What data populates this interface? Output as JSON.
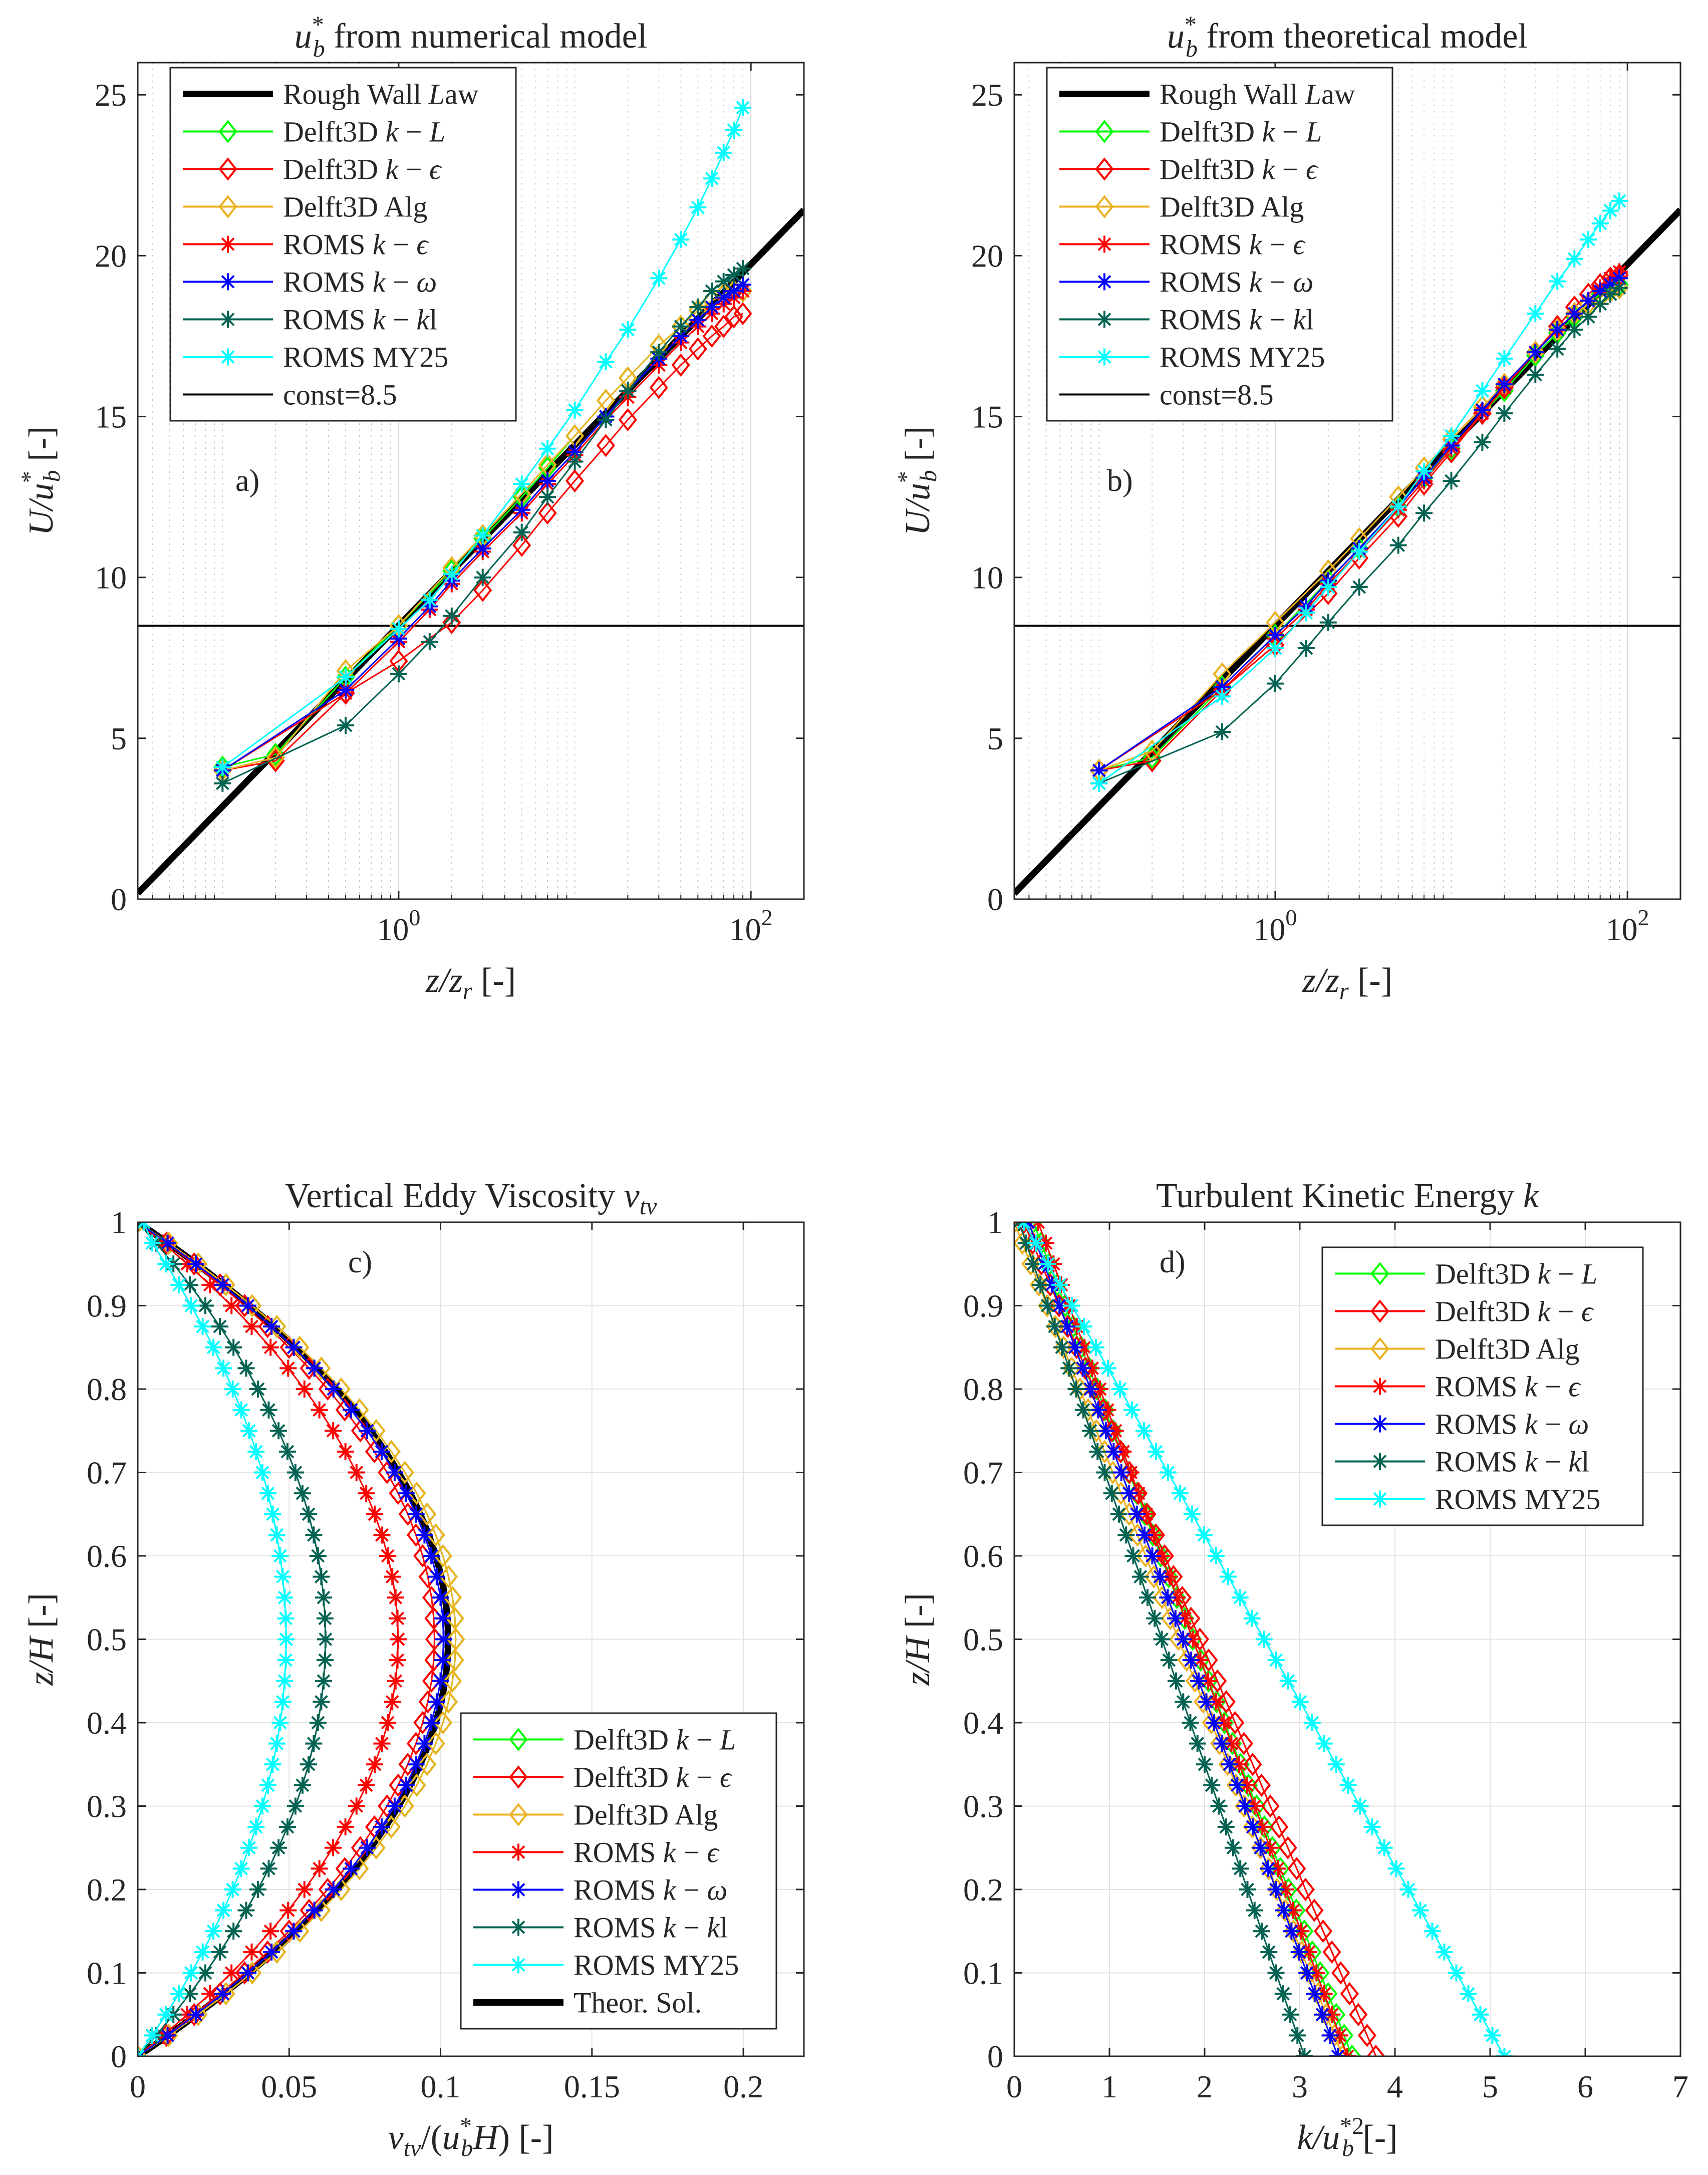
{
  "styles": {
    "Rough Wall Law": {
      "color": "#000000",
      "marker": "none",
      "width": 13
    },
    "Delft3D k-L": {
      "color": "#00ff00",
      "marker": "diamond",
      "width": 3
    },
    "Delft3D k-eps": {
      "color": "#ff0000",
      "marker": "diamond",
      "width": 3
    },
    "Delft3D Alg": {
      "color": "#edb120",
      "marker": "diamond",
      "width": 3
    },
    "ROMS k-eps": {
      "color": "#ff0000",
      "marker": "star",
      "width": 3
    },
    "ROMS k-omega": {
      "color": "#0000ff",
      "marker": "star",
      "width": 3
    },
    "ROMS k-kl": {
      "color": "#036251",
      "marker": "star",
      "width": 3
    },
    "ROMS MY25": {
      "color": "#00ffff",
      "marker": "star",
      "width": 3
    },
    "const=8.5": {
      "color": "#000000",
      "marker": "none",
      "width": 4
    },
    "Theor. Sol.": {
      "color": "#000000",
      "marker": "none",
      "width": 13
    }
  },
  "chart_data": [
    {
      "id": "a",
      "type": "line",
      "panel_letter": "a)",
      "title": "u_b^* from numerical model",
      "title_parts": {
        "prefix": "u",
        "sub": "b",
        "sup": "*",
        "suffix": " from numerical model"
      },
      "xlabel": "z/z_r [-]",
      "ylabel": "U/u_b^* [-]",
      "xscale": "log",
      "xlim": [
        0.033,
        200
      ],
      "ylim": [
        0,
        26
      ],
      "xticks": [
        {
          "value": 1,
          "label": "10",
          "exp": "0"
        },
        {
          "value": 100,
          "label": "10",
          "exp": "2"
        }
      ],
      "yticks": [
        0,
        5,
        10,
        15,
        20,
        25
      ],
      "grid": "minor",
      "legend_position": "top-left",
      "legend": [
        "Rough Wall Law",
        "Delft3D k-L",
        "Delft3D k-eps",
        "Delft3D Alg",
        "ROMS k-eps",
        "ROMS k-omega",
        "ROMS k-kl",
        "ROMS MY25",
        "const=8.5"
      ],
      "legend_labels": [
        "Rough Wall Law",
        "Delft3D k − L",
        "Delft3D k − ϵ",
        "Delft3D Alg",
        "ROMS k − ϵ",
        "ROMS k − ω",
        "ROMS k − kl",
        "ROMS MY25",
        "const=8.5"
      ],
      "series": [
        {
          "name": "Rough Wall Law",
          "kind": "loglaw",
          "x_range": [
            0.033,
            200
          ]
        },
        {
          "name": "const=8.5",
          "kind": "hline",
          "y": 8.5
        },
        {
          "name": "Delft3D k-L",
          "x": [
            0.1,
            0.2,
            0.5,
            1,
            2,
            3,
            5,
            7,
            10,
            15,
            20,
            30,
            40,
            50,
            60,
            70,
            80,
            90
          ],
          "y": [
            4.1,
            4.5,
            6.9,
            8.5,
            10.2,
            11.2,
            12.5,
            13.4,
            14.4,
            15.5,
            16.2,
            17.2,
            17.8,
            18.3,
            18.6,
            18.8,
            18.9,
            18.9
          ]
        },
        {
          "name": "Delft3D k-eps",
          "x": [
            0.1,
            0.2,
            0.5,
            1,
            2,
            3,
            5,
            7,
            10,
            15,
            20,
            30,
            40,
            50,
            60,
            70,
            80,
            90
          ],
          "y": [
            4.0,
            4.3,
            6.4,
            7.4,
            8.6,
            9.6,
            11.0,
            12.0,
            13.0,
            14.1,
            14.9,
            15.9,
            16.6,
            17.1,
            17.5,
            17.8,
            18.1,
            18.2
          ]
        },
        {
          "name": "Delft3D Alg",
          "x": [
            0.1,
            0.2,
            0.5,
            1,
            2,
            3,
            5,
            7,
            10,
            15,
            20,
            30,
            40,
            50,
            60,
            70,
            80,
            90
          ],
          "y": [
            4.0,
            4.4,
            7.1,
            8.5,
            10.3,
            11.3,
            12.6,
            13.5,
            14.4,
            15.5,
            16.2,
            17.2,
            17.8,
            18.3,
            18.6,
            18.8,
            18.9,
            18.9
          ]
        },
        {
          "name": "ROMS k-eps",
          "x": [
            0.1,
            0.5,
            1,
            1.5,
            2,
            3,
            5,
            7,
            10,
            15,
            20,
            30,
            40,
            50,
            60,
            70,
            80,
            90
          ],
          "y": [
            4.0,
            6.4,
            8.0,
            9.0,
            9.8,
            10.8,
            12.0,
            12.9,
            13.8,
            14.9,
            15.6,
            16.6,
            17.3,
            17.8,
            18.2,
            18.5,
            18.7,
            18.9
          ]
        },
        {
          "name": "ROMS k-omega",
          "x": [
            0.1,
            0.5,
            1,
            1.5,
            2,
            3,
            5,
            7,
            10,
            15,
            20,
            30,
            40,
            50,
            60,
            70,
            80,
            90
          ],
          "y": [
            4.0,
            6.5,
            8.1,
            9.1,
            9.9,
            10.9,
            12.1,
            13.0,
            13.9,
            15.0,
            15.8,
            16.8,
            17.5,
            18.0,
            18.4,
            18.7,
            18.9,
            19.1
          ]
        },
        {
          "name": "ROMS k-kl",
          "x": [
            0.1,
            0.5,
            1,
            1.5,
            2,
            3,
            5,
            7,
            10,
            15,
            20,
            30,
            40,
            50,
            60,
            70,
            80,
            90
          ],
          "y": [
            3.6,
            5.4,
            7.0,
            8.0,
            8.8,
            10.0,
            11.4,
            12.5,
            13.6,
            14.9,
            15.8,
            17.0,
            17.8,
            18.4,
            18.9,
            19.2,
            19.4,
            19.6
          ]
        },
        {
          "name": "ROMS MY25",
          "x": [
            0.1,
            0.5,
            1,
            1.5,
            2,
            3,
            5,
            7,
            10,
            15,
            20,
            30,
            40,
            50,
            60,
            70,
            80,
            90
          ],
          "y": [
            4.1,
            6.9,
            8.4,
            9.3,
            10.1,
            11.3,
            12.9,
            14.0,
            15.2,
            16.7,
            17.7,
            19.3,
            20.5,
            21.5,
            22.4,
            23.2,
            23.9,
            24.6
          ]
        }
      ]
    },
    {
      "id": "b",
      "type": "line",
      "panel_letter": "b)",
      "title": "u_b^* from theoretical model",
      "title_parts": {
        "prefix": "u",
        "sub": "b",
        "sup": "*",
        "suffix": " from theoretical model"
      },
      "xlabel": "z/z_r [-]",
      "ylabel": "U/u_b^* [-]",
      "xscale": "log",
      "xlim": [
        0.033,
        200
      ],
      "ylim": [
        0,
        26
      ],
      "xticks": [
        {
          "value": 1,
          "label": "10",
          "exp": "0"
        },
        {
          "value": 100,
          "label": "10",
          "exp": "2"
        }
      ],
      "yticks": [
        0,
        5,
        10,
        15,
        20,
        25
      ],
      "grid": "minor",
      "legend_position": "top-left",
      "legend": [
        "Rough Wall Law",
        "Delft3D k-L",
        "Delft3D k-eps",
        "Delft3D Alg",
        "ROMS k-eps",
        "ROMS k-omega",
        "ROMS k-kl",
        "ROMS MY25",
        "const=8.5"
      ],
      "legend_labels": [
        "Rough Wall Law",
        "Delft3D k − L",
        "Delft3D k − ϵ",
        "Delft3D Alg",
        "ROMS k − ϵ",
        "ROMS k − ω",
        "ROMS k − kl",
        "ROMS MY25",
        "const=8.5"
      ],
      "series": [
        {
          "name": "Rough Wall Law",
          "kind": "loglaw",
          "x_range": [
            0.033,
            200
          ]
        },
        {
          "name": "const=8.5",
          "kind": "hline",
          "y": 8.5
        },
        {
          "name": "Delft3D k-L",
          "x": [
            0.1,
            0.2,
            0.5,
            1,
            2,
            3,
            5,
            7,
            10,
            15,
            20,
            30,
            40,
            50,
            60,
            70,
            80,
            90
          ],
          "y": [
            4.0,
            4.4,
            6.6,
            8.2,
            9.9,
            10.9,
            12.2,
            13.1,
            14.0,
            15.1,
            15.8,
            16.9,
            17.6,
            18.1,
            18.5,
            18.8,
            19.0,
            19.1
          ]
        },
        {
          "name": "Delft3D k-eps",
          "x": [
            0.1,
            0.2,
            0.5,
            1,
            2,
            3,
            5,
            7,
            10,
            15,
            20,
            30,
            40,
            50,
            60,
            70,
            80,
            90
          ],
          "y": [
            4.0,
            4.3,
            6.5,
            7.9,
            9.5,
            10.6,
            11.9,
            12.9,
            13.9,
            15.1,
            15.9,
            17.0,
            17.8,
            18.4,
            18.8,
            19.1,
            19.3,
            19.4
          ]
        },
        {
          "name": "Delft3D Alg",
          "x": [
            0.1,
            0.2,
            0.5,
            1,
            2,
            3,
            5,
            7,
            10,
            15,
            20,
            30,
            40,
            50,
            60,
            70,
            80,
            90
          ],
          "y": [
            4.0,
            4.6,
            7.0,
            8.6,
            10.2,
            11.2,
            12.5,
            13.4,
            14.3,
            15.3,
            16.0,
            17.0,
            17.7,
            18.2,
            18.5,
            18.7,
            18.9,
            19.0
          ]
        },
        {
          "name": "ROMS k-eps",
          "x": [
            0.1,
            0.5,
            1,
            1.5,
            2,
            3,
            5,
            7,
            10,
            15,
            20,
            30,
            40,
            50,
            60,
            70,
            80,
            90
          ],
          "y": [
            4.0,
            6.5,
            8.1,
            9.0,
            9.8,
            10.8,
            12.1,
            13.0,
            14.0,
            15.1,
            15.9,
            17.0,
            17.7,
            18.2,
            18.6,
            19.0,
            19.3,
            19.5
          ]
        },
        {
          "name": "ROMS k-omega",
          "x": [
            0.1,
            0.5,
            1,
            1.5,
            2,
            3,
            5,
            7,
            10,
            15,
            20,
            30,
            40,
            50,
            60,
            70,
            80,
            90
          ],
          "y": [
            4.0,
            6.6,
            8.2,
            9.1,
            9.9,
            10.9,
            12.2,
            13.1,
            14.1,
            15.2,
            16.0,
            17.0,
            17.7,
            18.2,
            18.6,
            18.9,
            19.1,
            19.3
          ]
        },
        {
          "name": "ROMS k-kl",
          "x": [
            0.1,
            0.5,
            1,
            1.5,
            2,
            3,
            5,
            7,
            10,
            15,
            20,
            30,
            40,
            50,
            60,
            70,
            80,
            90
          ],
          "y": [
            3.6,
            5.2,
            6.7,
            7.8,
            8.6,
            9.7,
            11.0,
            12.0,
            13.0,
            14.2,
            15.1,
            16.3,
            17.1,
            17.7,
            18.1,
            18.5,
            18.8,
            19.0
          ]
        },
        {
          "name": "ROMS MY25",
          "x": [
            0.1,
            0.5,
            1,
            1.5,
            2,
            3,
            5,
            7,
            10,
            15,
            20,
            30,
            40,
            50,
            60,
            70,
            80,
            90
          ],
          "y": [
            3.6,
            6.3,
            7.8,
            8.9,
            9.7,
            10.8,
            12.2,
            13.3,
            14.4,
            15.8,
            16.8,
            18.2,
            19.2,
            19.9,
            20.5,
            21.0,
            21.4,
            21.7
          ]
        }
      ]
    },
    {
      "id": "c",
      "type": "line",
      "panel_letter": "c)",
      "title": "Vertical Eddy Viscosity ν_tv",
      "title_parts": {
        "prefix": "Vertical Eddy Viscosity ",
        "sym": "ν",
        "sub": "tv"
      },
      "xlabel": "ν_tv/(u_b^* H) [-]",
      "ylabel": "z/H [-]",
      "xscale": "linear",
      "xlim": [
        0,
        0.22
      ],
      "ylim": [
        0,
        1
      ],
      "xticks": [
        {
          "value": 0,
          "label": "0"
        },
        {
          "value": 0.05,
          "label": "0.05"
        },
        {
          "value": 0.1,
          "label": "0.1"
        },
        {
          "value": 0.15,
          "label": "0.15"
        },
        {
          "value": 0.2,
          "label": "0.2"
        }
      ],
      "yticks": [
        0,
        0.1,
        0.2,
        0.3,
        0.4,
        0.5,
        0.6,
        0.7,
        0.8,
        0.9,
        1
      ],
      "grid": "major",
      "legend_position": "bottom-right",
      "legend": [
        "Delft3D k-L",
        "Delft3D k-eps",
        "Delft3D Alg",
        "ROMS k-eps",
        "ROMS k-omega",
        "ROMS k-kl",
        "ROMS MY25",
        "Theor. Sol."
      ],
      "legend_labels": [
        "Delft3D k − L",
        "Delft3D k − ϵ",
        "Delft3D Alg",
        "ROMS k − ϵ",
        "ROMS k − ω",
        "ROMS k − kl",
        "ROMS MY25",
        "Theor. Sol."
      ],
      "series": [
        {
          "name": "Theor. Sol.",
          "kind": "parabola",
          "peak": 0.1025
        },
        {
          "name": "Delft3D k-L",
          "kind": "parabola",
          "peak": 0.105,
          "n": 41,
          "y_offset": 0.0
        },
        {
          "name": "Delft3D k-eps",
          "kind": "parabola",
          "peak": 0.098,
          "n": 41,
          "y_offset": 0.0
        },
        {
          "name": "Delft3D Alg",
          "kind": "parabola",
          "peak": 0.105,
          "n": 41,
          "y_offset": 0.0
        },
        {
          "name": "ROMS k-eps",
          "kind": "parabola",
          "peak": 0.086,
          "n": 41,
          "y_offset": 0.0
        },
        {
          "name": "ROMS k-omega",
          "kind": "parabola",
          "peak": 0.101,
          "n": 41,
          "y_offset": 0.0
        },
        {
          "name": "ROMS k-kl",
          "kind": "parabola",
          "peak": 0.062,
          "n": 41,
          "y_offset": 0.0
        },
        {
          "name": "ROMS MY25",
          "kind": "parabola",
          "peak": 0.049,
          "n": 41,
          "y_offset": 0.0
        }
      ]
    },
    {
      "id": "d",
      "type": "line",
      "panel_letter": "d)",
      "title": "Turbulent Kinetic Energy k",
      "title_parts": {
        "prefix": "Turbulent Kinetic Energy ",
        "sym": "k"
      },
      "xlabel": "k/u_b^{*2} [-]",
      "ylabel": "z/H [-]",
      "xscale": "linear",
      "xlim": [
        0,
        7
      ],
      "ylim": [
        0,
        1
      ],
      "xticks": [
        {
          "value": 0,
          "label": "0"
        },
        {
          "value": 1,
          "label": "1"
        },
        {
          "value": 2,
          "label": "2"
        },
        {
          "value": 3,
          "label": "3"
        },
        {
          "value": 4,
          "label": "4"
        },
        {
          "value": 5,
          "label": "5"
        },
        {
          "value": 6,
          "label": "6"
        },
        {
          "value": 7,
          "label": "7"
        }
      ],
      "yticks": [
        0,
        0.1,
        0.2,
        0.3,
        0.4,
        0.5,
        0.6,
        0.7,
        0.8,
        0.9,
        1
      ],
      "grid": "major",
      "legend_position": "top-right",
      "legend": [
        "Delft3D k-L",
        "Delft3D k-eps",
        "Delft3D Alg",
        "ROMS k-eps",
        "ROMS k-omega",
        "ROMS k-kl",
        "ROMS MY25"
      ],
      "legend_labels": [
        "Delft3D k − L",
        "Delft3D k − ϵ",
        "Delft3D Alg",
        "ROMS k − ϵ",
        "ROMS k − ω",
        "ROMS k − kl",
        "ROMS MY25"
      ],
      "series": [
        {
          "name": "Delft3D k-L",
          "kind": "linear",
          "x0": 3.55,
          "x1": 0.2,
          "n": 41
        },
        {
          "name": "Delft3D k-eps",
          "kind": "linear",
          "x0": 3.8,
          "x1": 0.1,
          "n": 41
        },
        {
          "name": "Delft3D Alg",
          "kind": "linear",
          "x0": 3.45,
          "x1": 0.0,
          "n": 41
        },
        {
          "name": "ROMS k-eps",
          "kind": "linear",
          "x0": 3.5,
          "x1": 0.25,
          "n": 41
        },
        {
          "name": "ROMS k-omega",
          "kind": "linear",
          "x0": 3.4,
          "x1": 0.15,
          "n": 41
        },
        {
          "name": "ROMS k-kl",
          "kind": "linear",
          "x0": 3.05,
          "x1": 0.05,
          "n": 41
        },
        {
          "name": "ROMS MY25",
          "kind": "linear",
          "x0": 5.15,
          "x1": 0.1,
          "n": 41
        }
      ]
    }
  ]
}
